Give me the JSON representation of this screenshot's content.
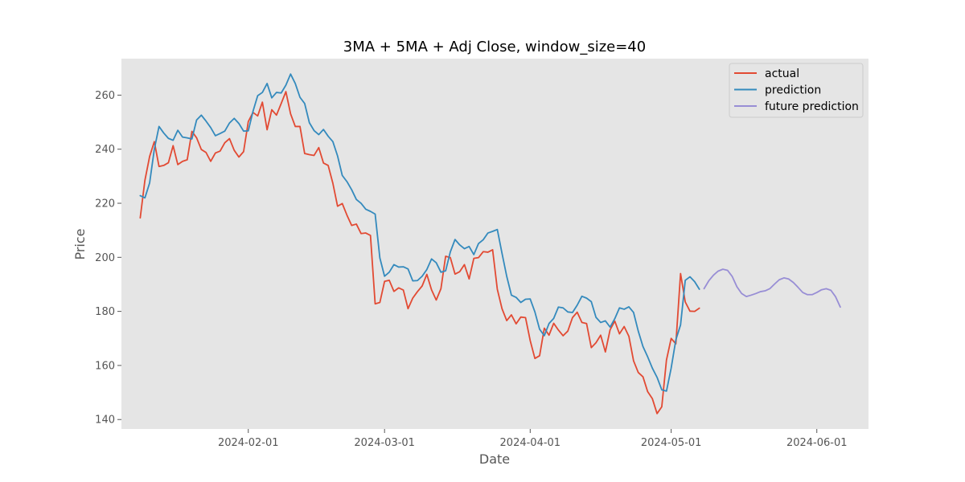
{
  "chart_data": {
    "type": "line",
    "title": "3MA + 5MA + Adj Close, window_size=40",
    "xlabel": "Date",
    "ylabel": "Price",
    "x_ticks": [
      "2024-02-01",
      "2024-03-01",
      "2024-04-01",
      "2024-05-01",
      "2024-06-01"
    ],
    "y_ticks": [
      "140",
      "160",
      "180",
      "200",
      "220",
      "240",
      "260"
    ],
    "xlim": [
      "2024-01-05",
      "2024-06-12"
    ],
    "ylim": [
      136.5,
      273.5
    ],
    "grid": false,
    "legend_position": "top-right",
    "series": [
      {
        "name": "actual",
        "color": "#e24a33",
        "points": [
          [
            "2024-01-09",
            214.6
          ],
          [
            "2024-01-10",
            228.5
          ],
          [
            "2024-01-11",
            237.3
          ],
          [
            "2024-01-12",
            242.8
          ],
          [
            "2024-01-13",
            233.6
          ],
          [
            "2024-01-14",
            234.0
          ],
          [
            "2024-01-15",
            235.0
          ],
          [
            "2024-01-16",
            241.3
          ],
          [
            "2024-01-17",
            234.3
          ],
          [
            "2024-01-18",
            235.5
          ],
          [
            "2024-01-19",
            236.1
          ],
          [
            "2024-01-20",
            246.6
          ],
          [
            "2024-01-21",
            244.2
          ],
          [
            "2024-01-22",
            239.9
          ],
          [
            "2024-01-23",
            238.8
          ],
          [
            "2024-01-24",
            235.5
          ],
          [
            "2024-01-25",
            238.6
          ],
          [
            "2024-01-26",
            239.3
          ],
          [
            "2024-01-27",
            242.4
          ],
          [
            "2024-01-28",
            243.9
          ],
          [
            "2024-01-29",
            239.6
          ],
          [
            "2024-01-30",
            237.1
          ],
          [
            "2024-01-31",
            239.1
          ],
          [
            "2024-02-01",
            250.2
          ],
          [
            "2024-02-02",
            253.6
          ],
          [
            "2024-02-03",
            252.3
          ],
          [
            "2024-02-04",
            257.4
          ],
          [
            "2024-02-05",
            247.2
          ],
          [
            "2024-02-06",
            254.6
          ],
          [
            "2024-02-07",
            252.6
          ],
          [
            "2024-02-08",
            256.9
          ],
          [
            "2024-02-09",
            261.3
          ],
          [
            "2024-02-10",
            253.1
          ],
          [
            "2024-02-11",
            248.4
          ],
          [
            "2024-02-12",
            248.4
          ],
          [
            "2024-02-13",
            238.4
          ],
          [
            "2024-02-14",
            238.0
          ],
          [
            "2024-02-15",
            237.7
          ],
          [
            "2024-02-16",
            240.6
          ],
          [
            "2024-02-17",
            234.9
          ],
          [
            "2024-02-18",
            234.0
          ],
          [
            "2024-02-19",
            227.4
          ],
          [
            "2024-02-20",
            218.9
          ],
          [
            "2024-02-21",
            219.9
          ],
          [
            "2024-02-22",
            215.6
          ],
          [
            "2024-02-23",
            211.8
          ],
          [
            "2024-02-24",
            212.3
          ],
          [
            "2024-02-25",
            208.8
          ],
          [
            "2024-02-26",
            209.0
          ],
          [
            "2024-02-27",
            208.1
          ],
          [
            "2024-02-28",
            182.8
          ],
          [
            "2024-02-29",
            183.3
          ],
          [
            "2024-03-01",
            191.1
          ],
          [
            "2024-03-02",
            191.5
          ],
          [
            "2024-03-03",
            187.4
          ],
          [
            "2024-03-04",
            188.7
          ],
          [
            "2024-03-05",
            187.9
          ],
          [
            "2024-03-06",
            181.0
          ],
          [
            "2024-03-07",
            184.9
          ],
          [
            "2024-03-08",
            187.3
          ],
          [
            "2024-03-09",
            189.4
          ],
          [
            "2024-03-10",
            193.7
          ],
          [
            "2024-03-11",
            188.0
          ],
          [
            "2024-03-12",
            184.2
          ],
          [
            "2024-03-13",
            188.4
          ],
          [
            "2024-03-14",
            200.4
          ],
          [
            "2024-03-15",
            199.9
          ],
          [
            "2024-03-16",
            193.8
          ],
          [
            "2024-03-17",
            194.7
          ],
          [
            "2024-03-18",
            197.3
          ],
          [
            "2024-03-19",
            192.0
          ],
          [
            "2024-03-20",
            199.6
          ],
          [
            "2024-03-21",
            199.9
          ],
          [
            "2024-03-22",
            202.1
          ],
          [
            "2024-03-23",
            201.9
          ],
          [
            "2024-03-24",
            202.8
          ],
          [
            "2024-03-25",
            188.2
          ],
          [
            "2024-03-26",
            181.0
          ],
          [
            "2024-03-27",
            176.6
          ],
          [
            "2024-03-28",
            178.7
          ],
          [
            "2024-03-29",
            175.4
          ],
          [
            "2024-03-30",
            177.9
          ],
          [
            "2024-03-31",
            177.7
          ],
          [
            "2024-04-01",
            169.2
          ],
          [
            "2024-04-02",
            162.6
          ],
          [
            "2024-04-03",
            163.6
          ],
          [
            "2024-04-04",
            173.8
          ],
          [
            "2024-04-05",
            171.2
          ],
          [
            "2024-04-06",
            175.6
          ],
          [
            "2024-04-07",
            173.1
          ],
          [
            "2024-04-08",
            171.0
          ],
          [
            "2024-04-09",
            172.7
          ],
          [
            "2024-04-10",
            177.7
          ],
          [
            "2024-04-11",
            179.7
          ],
          [
            "2024-04-12",
            175.9
          ],
          [
            "2024-04-13",
            175.5
          ],
          [
            "2024-04-14",
            166.6
          ],
          [
            "2024-04-15",
            168.4
          ],
          [
            "2024-04-16",
            171.2
          ],
          [
            "2024-04-17",
            165.0
          ],
          [
            "2024-04-18",
            173.2
          ],
          [
            "2024-04-19",
            176.4
          ],
          [
            "2024-04-20",
            171.7
          ],
          [
            "2024-04-21",
            174.4
          ],
          [
            "2024-04-22",
            170.8
          ],
          [
            "2024-04-23",
            161.7
          ],
          [
            "2024-04-24",
            157.4
          ],
          [
            "2024-04-25",
            155.8
          ],
          [
            "2024-04-26",
            150.3
          ],
          [
            "2024-04-27",
            147.7
          ],
          [
            "2024-04-28",
            142.2
          ],
          [
            "2024-04-29",
            144.7
          ],
          [
            "2024-04-30",
            162.0
          ],
          [
            "2024-05-01",
            170.0
          ],
          [
            "2024-05-02",
            168.0
          ],
          [
            "2024-05-03",
            194.0
          ],
          [
            "2024-05-04",
            183.5
          ],
          [
            "2024-05-05",
            180.1
          ],
          [
            "2024-05-06",
            180.0
          ],
          [
            "2024-05-07",
            181.2
          ]
        ]
      },
      {
        "name": "prediction",
        "color": "#348abd",
        "points": [
          [
            "2024-01-09",
            222.8
          ],
          [
            "2024-01-10",
            222.0
          ],
          [
            "2024-01-11",
            227.5
          ],
          [
            "2024-01-12",
            240.0
          ],
          [
            "2024-01-13",
            248.4
          ],
          [
            "2024-01-14",
            246.0
          ],
          [
            "2024-01-15",
            244.0
          ],
          [
            "2024-01-16",
            243.3
          ],
          [
            "2024-01-17",
            247.0
          ],
          [
            "2024-01-18",
            244.5
          ],
          [
            "2024-01-19",
            244.2
          ],
          [
            "2024-01-20",
            243.8
          ],
          [
            "2024-01-21",
            250.8
          ],
          [
            "2024-01-22",
            252.6
          ],
          [
            "2024-01-23",
            250.4
          ],
          [
            "2024-01-24",
            248.0
          ],
          [
            "2024-01-25",
            245.0
          ],
          [
            "2024-01-26",
            245.8
          ],
          [
            "2024-01-27",
            246.7
          ],
          [
            "2024-01-28",
            249.7
          ],
          [
            "2024-01-29",
            251.4
          ],
          [
            "2024-01-30",
            249.5
          ],
          [
            "2024-01-31",
            246.7
          ],
          [
            "2024-02-01",
            246.8
          ],
          [
            "2024-02-02",
            254.0
          ],
          [
            "2024-02-03",
            259.8
          ],
          [
            "2024-02-04",
            261.0
          ],
          [
            "2024-02-05",
            264.3
          ],
          [
            "2024-02-06",
            259.0
          ],
          [
            "2024-02-07",
            261.0
          ],
          [
            "2024-02-08",
            260.8
          ],
          [
            "2024-02-09",
            263.7
          ],
          [
            "2024-02-10",
            267.8
          ],
          [
            "2024-02-11",
            264.3
          ],
          [
            "2024-02-12",
            259.2
          ],
          [
            "2024-02-13",
            256.9
          ],
          [
            "2024-02-14",
            249.8
          ],
          [
            "2024-02-15",
            246.9
          ],
          [
            "2024-02-16",
            245.4
          ],
          [
            "2024-02-17",
            247.3
          ],
          [
            "2024-02-18",
            244.8
          ],
          [
            "2024-02-19",
            242.8
          ],
          [
            "2024-02-20",
            237.5
          ],
          [
            "2024-02-21",
            230.3
          ],
          [
            "2024-02-22",
            228.0
          ],
          [
            "2024-02-23",
            225.0
          ],
          [
            "2024-02-24",
            221.4
          ],
          [
            "2024-02-25",
            220.0
          ],
          [
            "2024-02-26",
            217.8
          ],
          [
            "2024-02-27",
            217.0
          ],
          [
            "2024-02-28",
            216.0
          ],
          [
            "2024-02-29",
            199.8
          ],
          [
            "2024-03-01",
            193.0
          ],
          [
            "2024-03-02",
            194.5
          ],
          [
            "2024-03-03",
            197.3
          ],
          [
            "2024-03-04",
            196.4
          ],
          [
            "2024-03-05",
            196.5
          ],
          [
            "2024-03-06",
            195.7
          ],
          [
            "2024-03-07",
            191.3
          ],
          [
            "2024-03-08",
            191.4
          ],
          [
            "2024-03-09",
            193.0
          ],
          [
            "2024-03-10",
            195.5
          ],
          [
            "2024-03-11",
            199.4
          ],
          [
            "2024-03-12",
            198.0
          ],
          [
            "2024-03-13",
            194.5
          ],
          [
            "2024-03-14",
            195.0
          ],
          [
            "2024-03-15",
            202.0
          ],
          [
            "2024-03-16",
            206.6
          ],
          [
            "2024-03-17",
            204.6
          ],
          [
            "2024-03-18",
            203.2
          ],
          [
            "2024-03-19",
            204.0
          ],
          [
            "2024-03-20",
            201.0
          ],
          [
            "2024-03-21",
            205.1
          ],
          [
            "2024-03-22",
            206.5
          ],
          [
            "2024-03-23",
            209.0
          ],
          [
            "2024-03-24",
            209.6
          ],
          [
            "2024-03-25",
            210.3
          ],
          [
            "2024-03-26",
            201.5
          ],
          [
            "2024-03-27",
            193.0
          ],
          [
            "2024-03-28",
            186.0
          ],
          [
            "2024-03-29",
            185.2
          ],
          [
            "2024-03-30",
            183.3
          ],
          [
            "2024-03-31",
            184.5
          ],
          [
            "2024-04-01",
            184.6
          ],
          [
            "2024-04-02",
            179.8
          ],
          [
            "2024-04-03",
            173.4
          ],
          [
            "2024-04-04",
            171.0
          ],
          [
            "2024-04-05",
            175.5
          ],
          [
            "2024-04-06",
            177.4
          ],
          [
            "2024-04-07",
            181.6
          ],
          [
            "2024-04-08",
            181.3
          ],
          [
            "2024-04-09",
            179.8
          ],
          [
            "2024-04-10",
            179.6
          ],
          [
            "2024-04-11",
            182.3
          ],
          [
            "2024-04-12",
            185.6
          ],
          [
            "2024-04-13",
            184.9
          ],
          [
            "2024-04-14",
            183.6
          ],
          [
            "2024-04-15",
            177.8
          ],
          [
            "2024-04-16",
            175.9
          ],
          [
            "2024-04-17",
            176.5
          ],
          [
            "2024-04-18",
            174.2
          ],
          [
            "2024-04-19",
            177.3
          ],
          [
            "2024-04-20",
            181.3
          ],
          [
            "2024-04-21",
            180.8
          ],
          [
            "2024-04-22",
            181.7
          ],
          [
            "2024-04-23",
            179.6
          ],
          [
            "2024-04-24",
            172.7
          ],
          [
            "2024-04-25",
            167.0
          ],
          [
            "2024-04-26",
            163.2
          ],
          [
            "2024-04-27",
            159.0
          ],
          [
            "2024-04-28",
            155.6
          ],
          [
            "2024-04-29",
            151.0
          ],
          [
            "2024-04-30",
            150.5
          ],
          [
            "2024-05-01",
            159.0
          ],
          [
            "2024-05-02",
            169.5
          ],
          [
            "2024-05-03",
            175.0
          ],
          [
            "2024-05-04",
            191.5
          ],
          [
            "2024-05-05",
            192.8
          ],
          [
            "2024-05-06",
            191.0
          ],
          [
            "2024-05-07",
            188.2
          ]
        ]
      },
      {
        "name": "future prediction",
        "color": "#988ed5",
        "points": [
          [
            "2024-05-08",
            188.4
          ],
          [
            "2024-05-09",
            191.3
          ],
          [
            "2024-05-10",
            193.4
          ],
          [
            "2024-05-11",
            194.9
          ],
          [
            "2024-05-12",
            195.6
          ],
          [
            "2024-05-13",
            195.2
          ],
          [
            "2024-05-14",
            192.9
          ],
          [
            "2024-05-15",
            189.1
          ],
          [
            "2024-05-16",
            186.6
          ],
          [
            "2024-05-17",
            185.5
          ],
          [
            "2024-05-18",
            186.0
          ],
          [
            "2024-05-19",
            186.6
          ],
          [
            "2024-05-20",
            187.3
          ],
          [
            "2024-05-21",
            187.6
          ],
          [
            "2024-05-22",
            188.4
          ],
          [
            "2024-05-23",
            190.1
          ],
          [
            "2024-05-24",
            191.7
          ],
          [
            "2024-05-25",
            192.4
          ],
          [
            "2024-05-26",
            192.0
          ],
          [
            "2024-05-27",
            190.7
          ],
          [
            "2024-05-28",
            188.9
          ],
          [
            "2024-05-29",
            187.0
          ],
          [
            "2024-05-30",
            186.2
          ],
          [
            "2024-05-31",
            186.2
          ],
          [
            "2024-06-01",
            187.0
          ],
          [
            "2024-06-02",
            188.0
          ],
          [
            "2024-06-03",
            188.4
          ],
          [
            "2024-06-04",
            187.8
          ],
          [
            "2024-06-05",
            185.4
          ],
          [
            "2024-06-06",
            181.6
          ]
        ]
      }
    ]
  }
}
